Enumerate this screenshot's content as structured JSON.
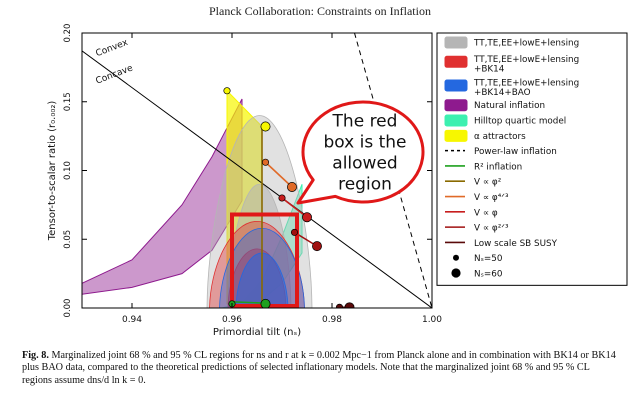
{
  "header": {
    "title": "Planck Collaboration: Constraints on Inflation"
  },
  "caption": {
    "figure_label": "Fig. 8.",
    "text": "Marginalized joint 68 % and 95 % CL regions for ns and r at k = 0.002 Mpc−1 from Planck alone and in combination with BK14 or BK14 plus BAO data, compared to the theoretical predictions of selected inflationary models. Note that the marginalized joint 68 % and 95 % CL regions assume dns/d ln k = 0."
  },
  "callout": {
    "text_lines": [
      "The red",
      "box is the",
      "allowed",
      "region"
    ],
    "border_color": "#e01818"
  },
  "chart_data": {
    "type": "scatter",
    "title": "",
    "xlabel": "Primordial tilt (nₛ)",
    "ylabel": "Tensor-to-scalar ratio (r₀.₀₀₂)",
    "xlim": [
      0.93,
      1.0
    ],
    "ylim": [
      0.0,
      0.2
    ],
    "x_ticks": [
      0.94,
      0.96,
      0.98,
      1.0
    ],
    "x_tick_labels": [
      "0.94",
      "0.96",
      "0.98",
      "1.00"
    ],
    "y_ticks": [
      0.0,
      0.05,
      0.1,
      0.15,
      0.2
    ],
    "y_tick_labels": [
      "0.00",
      "0.05",
      "0.10",
      "0.15",
      "0.20"
    ],
    "grid": false,
    "legend_position": "right",
    "annotations": [
      {
        "text": "Convex",
        "x": 0.933,
        "y": 0.183,
        "angle": -21
      },
      {
        "text": "Concave",
        "x": 0.933,
        "y": 0.163,
        "angle": -21
      }
    ],
    "reference_lines": [
      {
        "name": "concave-convex divide",
        "x": [
          0.93,
          1.0
        ],
        "y": [
          0.187,
          0.0
        ],
        "style": "solid",
        "color": "#000000"
      },
      {
        "name": "Power-law inflation",
        "x": [
          0.9845,
          1.0
        ],
        "y": [
          0.2,
          0.0
        ],
        "style": "dashed",
        "color": "#000000"
      }
    ],
    "contours": [
      {
        "name": "TT,TE,EE+lowE+lensing",
        "color": "#b5b5b5",
        "regions": [
          {
            "level": "95%",
            "cx": 0.9655,
            "cy": 0.055,
            "rx": 0.0105,
            "ry": 0.06,
            "top": 0.14
          },
          {
            "level": "68%",
            "cx": 0.9655,
            "cy": 0.04,
            "rx": 0.0063,
            "ry": 0.045,
            "top": 0.09
          }
        ]
      },
      {
        "name": "TT,TE,EE+lowE+lensing+BK14",
        "color": "#e03030",
        "regions": [
          {
            "level": "95%",
            "cx": 0.965,
            "cy": 0.03,
            "rx": 0.0095,
            "ry": 0.03,
            "top": 0.063
          },
          {
            "level": "68%",
            "cx": 0.965,
            "cy": 0.022,
            "rx": 0.0058,
            "ry": 0.022,
            "top": 0.043
          }
        ]
      },
      {
        "name": "TT,TE,EE+lowE+lensing+BK14+BAO",
        "color": "#2468e0",
        "regions": [
          {
            "level": "95%",
            "cx": 0.966,
            "cy": 0.028,
            "rx": 0.0085,
            "ry": 0.028,
            "top": 0.058
          },
          {
            "level": "68%",
            "cx": 0.966,
            "cy": 0.02,
            "rx": 0.0052,
            "ry": 0.02,
            "top": 0.04
          }
        ]
      }
    ],
    "model_bands": [
      {
        "name": "Natural inflation",
        "color": "#8e1a8e",
        "upper": {
          "x": [
            0.93,
            0.94,
            0.95,
            0.956,
            0.962
          ],
          "y": [
            0.018,
            0.035,
            0.075,
            0.11,
            0.152
          ]
        },
        "lower": {
          "x": [
            0.93,
            0.94,
            0.95,
            0.956,
            0.962
          ],
          "y": [
            0.01,
            0.015,
            0.025,
            0.042,
            0.078
          ]
        }
      },
      {
        "name": "Hilltop quartic model",
        "color": "#3cf0b0",
        "upper": {
          "x": [
            0.958,
            0.962,
            0.966,
            0.97,
            0.974
          ],
          "y": [
            0.0,
            0.004,
            0.02,
            0.052,
            0.09
          ]
        },
        "lower": {
          "x": [
            0.958,
            0.962,
            0.966,
            0.97,
            0.974
          ],
          "y": [
            0.0,
            0.001,
            0.006,
            0.018,
            0.04
          ]
        }
      },
      {
        "name": "α attractors",
        "color": "#f7f700",
        "polygon": {
          "x": [
            0.959,
            0.959,
            0.966,
            0.966
          ],
          "y": [
            0.003,
            0.158,
            0.132,
            0.004
          ]
        }
      }
    ],
    "series": [
      {
        "name": "V ∝ φ²",
        "color": "#8a6a00",
        "x": [
          0.966,
          0.966
        ],
        "y": [
          0.133,
          0.004
        ]
      },
      {
        "name": "R² inflation",
        "color": "#1ea01e",
        "x": [
          0.96,
          0.9667
        ],
        "y": [
          0.0045,
          0.0035
        ]
      },
      {
        "name": "V ∝ φ⁴ᐟ³",
        "color": "#e06a28",
        "x": [
          0.9667,
          0.972
        ],
        "y": [
          0.106,
          0.088
        ]
      },
      {
        "name": "V ∝ φ",
        "color": "#c81e1e",
        "x": [
          0.97,
          0.975
        ],
        "y": [
          0.08,
          0.066
        ]
      },
      {
        "name": "V ∝ φ²ᐟ³",
        "color": "#a01010",
        "x": [
          0.9725,
          0.977
        ],
        "y": [
          0.055,
          0.045
        ]
      },
      {
        "name": "Low scale SB SUSY",
        "color": "#5a0a0a",
        "x": [
          0.9815,
          0.9835
        ],
        "y": [
          0.0005,
          0.0005
        ]
      }
    ],
    "markers": [
      {
        "label": "Nₛ=50",
        "size": "small",
        "x": 0.959,
        "y": 0.158,
        "color": "#f7f700"
      },
      {
        "label": "Nₛ=60",
        "size": "large",
        "x": 0.9667,
        "y": 0.132,
        "color": "#f7f700"
      },
      {
        "label": "Nₛ=50",
        "size": "small",
        "x": 0.96,
        "y": 0.003,
        "color": "#1ea01e"
      },
      {
        "label": "Nₛ=60",
        "size": "large",
        "x": 0.9667,
        "y": 0.003,
        "color": "#1ea01e"
      },
      {
        "label": "Nₛ=50",
        "size": "small",
        "x": 0.9667,
        "y": 0.106,
        "color": "#e06a28"
      },
      {
        "label": "Nₛ=60",
        "size": "large",
        "x": 0.972,
        "y": 0.088,
        "color": "#e06a28"
      },
      {
        "label": "Nₛ=50",
        "size": "small",
        "x": 0.97,
        "y": 0.08,
        "color": "#c81e1e"
      },
      {
        "label": "Nₛ=60",
        "size": "large",
        "x": 0.975,
        "y": 0.066,
        "color": "#c81e1e"
      },
      {
        "label": "Nₛ=50",
        "size": "small",
        "x": 0.9725,
        "y": 0.055,
        "color": "#a01010"
      },
      {
        "label": "Nₛ=60",
        "size": "large",
        "x": 0.977,
        "y": 0.045,
        "color": "#a01010"
      },
      {
        "label": "Nₛ=50",
        "size": "small",
        "x": 0.9815,
        "y": 0.0005,
        "color": "#5a0a0a"
      },
      {
        "label": "Nₛ=60",
        "size": "large",
        "x": 0.9835,
        "y": 0.0005,
        "color": "#5a0a0a"
      }
    ],
    "highlight_box": {
      "x": [
        0.96,
        0.973
      ],
      "y": [
        0.0,
        0.068
      ],
      "color": "#e01818"
    },
    "legend": [
      {
        "label": "TT,TE,EE+lowE+lensing",
        "kind": "patch",
        "color": "#b5b5b5"
      },
      {
        "label": "TT,TE,EE+lowE+lensing",
        "label2": "+BK14",
        "kind": "patch",
        "color": "#e03030"
      },
      {
        "label": "TT,TE,EE+lowE+lensing",
        "label2": "+BK14+BAO",
        "kind": "patch",
        "color": "#2468e0"
      },
      {
        "label": "Natural inflation",
        "kind": "patch",
        "color": "#8e1a8e"
      },
      {
        "label": "Hilltop quartic model",
        "kind": "patch",
        "color": "#3cf0b0"
      },
      {
        "label": "α attractors",
        "kind": "patch",
        "color": "#f7f700"
      },
      {
        "label": "Power-law inflation",
        "kind": "dashed",
        "color": "#000000"
      },
      {
        "label": "R² inflation",
        "kind": "line",
        "color": "#1ea01e"
      },
      {
        "label": "V ∝ φ²",
        "kind": "line",
        "color": "#8a6a00"
      },
      {
        "label": "V ∝ φ⁴ᐟ³",
        "kind": "line",
        "color": "#e06a28"
      },
      {
        "label": "V ∝ φ",
        "kind": "line",
        "color": "#c81e1e"
      },
      {
        "label": "V ∝ φ²ᐟ³",
        "kind": "line",
        "color": "#a01010"
      },
      {
        "label": "Low scale SB SUSY",
        "kind": "line",
        "color": "#5a0a0a"
      },
      {
        "label": "Nₛ=50",
        "kind": "dot-small",
        "color": "#000000"
      },
      {
        "label": "Nₛ=60",
        "kind": "dot-large",
        "color": "#000000"
      }
    ]
  }
}
